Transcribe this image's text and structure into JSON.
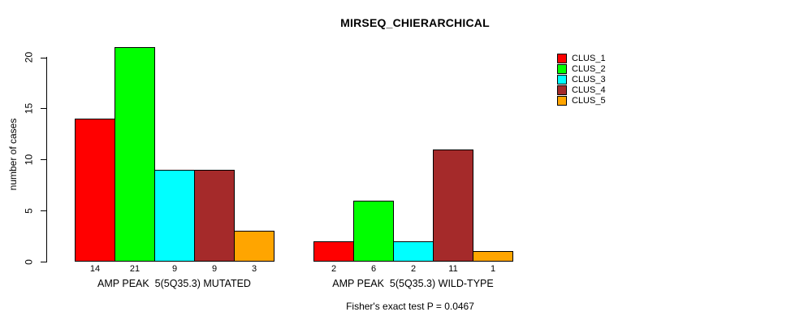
{
  "title": "MIRSEQ_CHIERARCHICAL",
  "footer_note": "Fisher's exact test P = 0.0467",
  "chart_data": {
    "type": "bar",
    "title": "MIRSEQ_CHIERARCHICAL",
    "ylabel": "number of cases",
    "ylim": [
      0,
      21
    ],
    "yticks": [
      0,
      5,
      10,
      15,
      20
    ],
    "grid": false,
    "legend_position": "right",
    "groups": [
      {
        "label": "AMP PEAK  5(5Q35.3) MUTATED",
        "values": [
          14,
          21,
          9,
          9,
          3
        ]
      },
      {
        "label": "AMP PEAK  5(5Q35.3) WILD-TYPE",
        "values": [
          2,
          6,
          2,
          11,
          1
        ]
      }
    ],
    "series_colors": [
      "#FF0000",
      "#00FF00",
      "#00FFFF",
      "#A52A2A",
      "#FFA500"
    ],
    "legend": [
      {
        "label": "CLUS_1",
        "color": "#FF0000"
      },
      {
        "label": "CLUS_2",
        "color": "#00FF00"
      },
      {
        "label": "CLUS_3",
        "color": "#00FFFF"
      },
      {
        "label": "CLUS_4",
        "color": "#A52A2A"
      },
      {
        "label": "CLUS_5",
        "color": "#FFA500"
      }
    ],
    "annotation": "Fisher's exact test P = 0.0467"
  }
}
